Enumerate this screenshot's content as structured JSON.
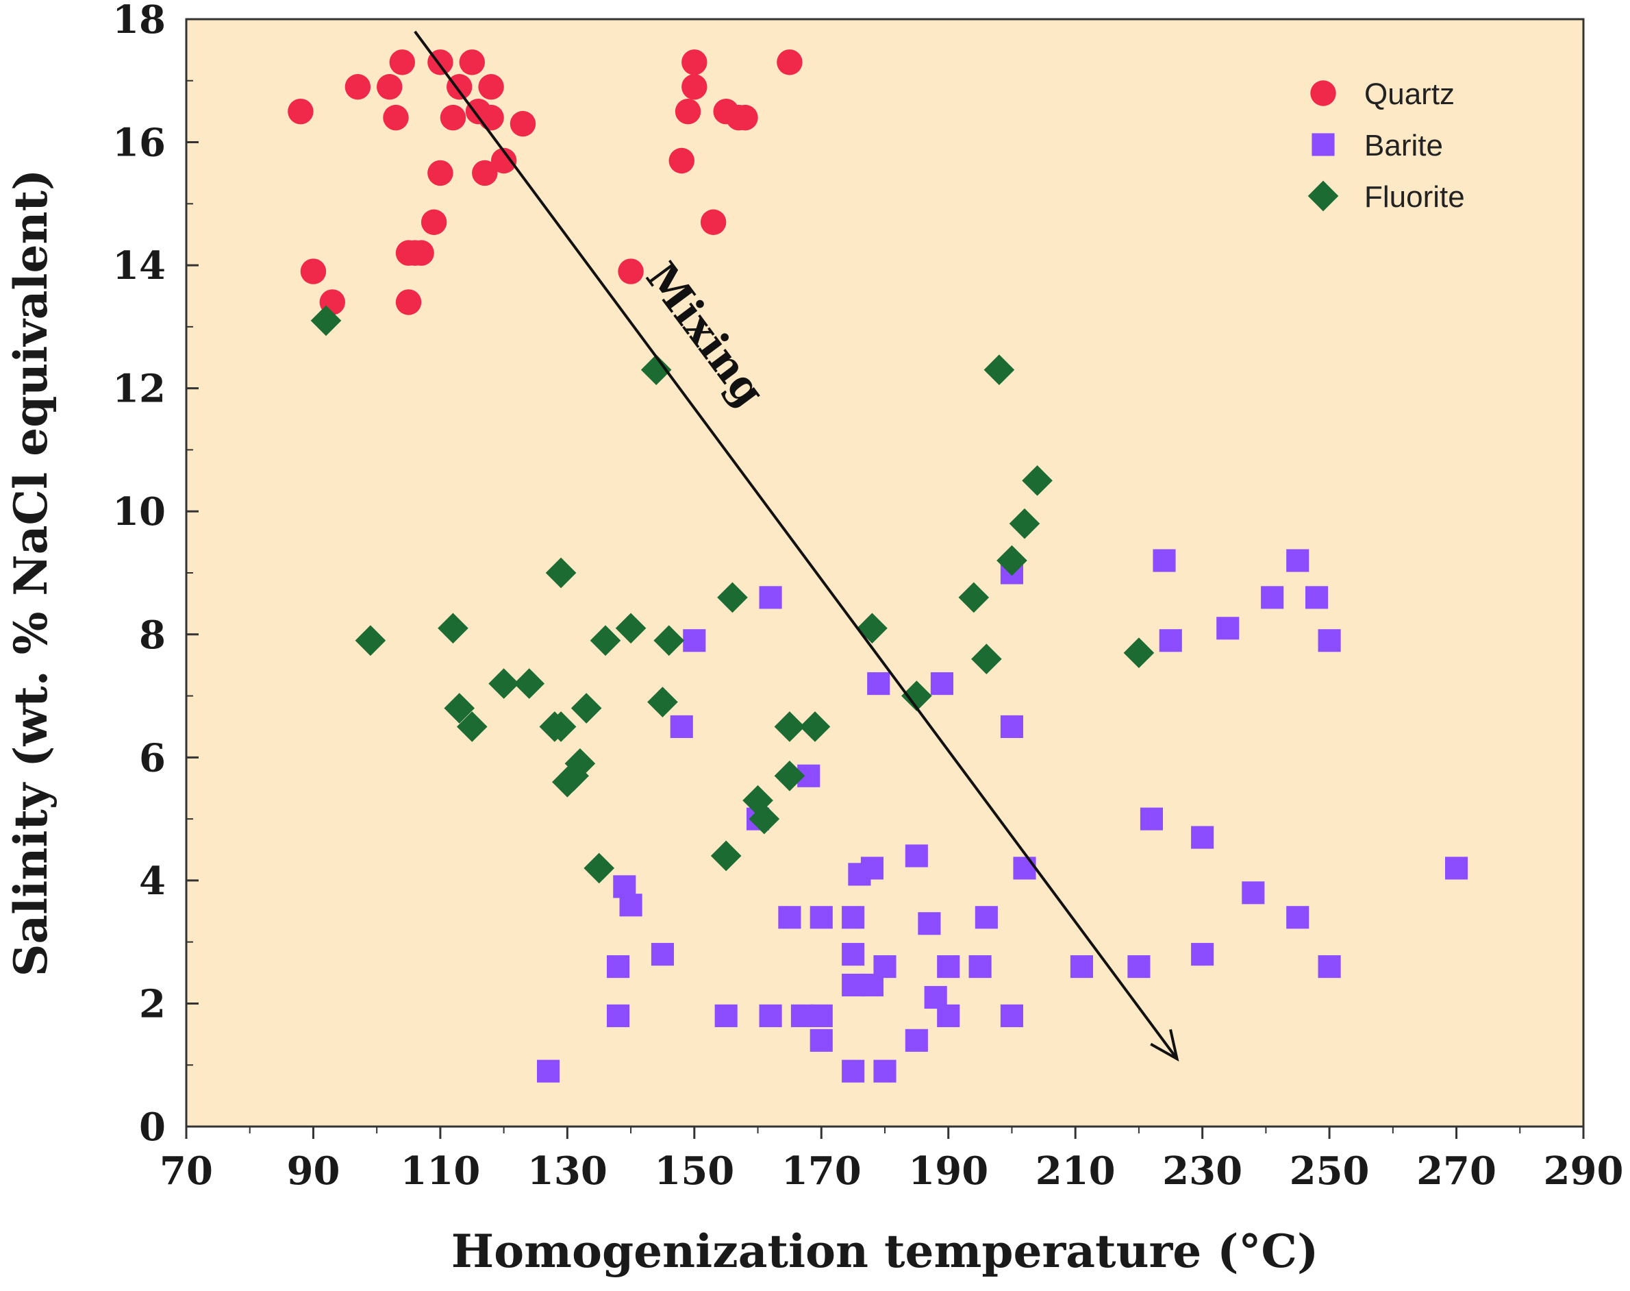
{
  "chart_data": {
    "type": "scatter",
    "title": "",
    "xlabel": "Homogenization temperature (°C)",
    "ylabel": "Salinity (wt. % NaCl equivalent)",
    "xlim": [
      70,
      290
    ],
    "ylim": [
      0,
      18
    ],
    "x_ticks": [
      70,
      90,
      110,
      130,
      150,
      170,
      190,
      210,
      230,
      250,
      270,
      290
    ],
    "y_ticks": [
      0,
      2,
      4,
      6,
      8,
      10,
      12,
      14,
      16,
      18
    ],
    "x_tick_labels": [
      "70",
      "90",
      "110",
      "130",
      "150",
      "170",
      "190",
      "210",
      "230",
      "250",
      "270",
      "290"
    ],
    "y_tick_labels": [
      "0",
      "2",
      "4",
      "6",
      "8",
      "10",
      "12",
      "14",
      "16",
      "18"
    ],
    "background_color": "#fde9c5",
    "grid": false,
    "legend_position": "top-right",
    "series": [
      {
        "name": "Quartz",
        "marker": "circle",
        "color": "#f0284a",
        "points": [
          [
            88,
            16.5
          ],
          [
            90,
            13.9
          ],
          [
            93,
            13.4
          ],
          [
            97,
            16.9
          ],
          [
            102,
            16.9
          ],
          [
            103,
            16.4
          ],
          [
            104,
            17.3
          ],
          [
            105,
            13.4
          ],
          [
            105,
            14.2
          ],
          [
            106,
            14.2
          ],
          [
            107,
            14.2
          ],
          [
            109,
            14.7
          ],
          [
            110,
            15.5
          ],
          [
            110,
            17.3
          ],
          [
            112,
            16.4
          ],
          [
            113,
            16.9
          ],
          [
            115,
            17.3
          ],
          [
            116,
            16.5
          ],
          [
            117,
            15.5
          ],
          [
            118,
            16.4
          ],
          [
            118,
            16.9
          ],
          [
            120,
            15.7
          ],
          [
            123,
            16.3
          ],
          [
            140,
            13.9
          ],
          [
            148,
            15.7
          ],
          [
            149,
            16.5
          ],
          [
            150,
            16.9
          ],
          [
            150,
            17.3
          ],
          [
            153,
            14.7
          ],
          [
            155,
            16.5
          ],
          [
            157,
            16.4
          ],
          [
            158,
            16.4
          ],
          [
            165,
            17.3
          ]
        ]
      },
      {
        "name": "Barite",
        "marker": "square",
        "color": "#8b4dff",
        "points": [
          [
            127,
            0.9
          ],
          [
            138,
            1.8
          ],
          [
            138,
            2.6
          ],
          [
            139,
            3.9
          ],
          [
            140,
            3.6
          ],
          [
            145,
            2.8
          ],
          [
            148,
            6.5
          ],
          [
            150,
            7.9
          ],
          [
            155,
            1.8
          ],
          [
            160,
            5.0
          ],
          [
            162,
            1.8
          ],
          [
            162,
            8.6
          ],
          [
            165,
            3.4
          ],
          [
            167,
            1.8
          ],
          [
            168,
            5.7
          ],
          [
            170,
            1.4
          ],
          [
            170,
            1.8
          ],
          [
            170,
            3.4
          ],
          [
            175,
            0.9
          ],
          [
            175,
            2.3
          ],
          [
            175,
            2.8
          ],
          [
            175,
            3.4
          ],
          [
            176,
            4.1
          ],
          [
            178,
            2.3
          ],
          [
            178,
            4.2
          ],
          [
            179,
            7.2
          ],
          [
            180,
            0.9
          ],
          [
            180,
            2.6
          ],
          [
            185,
            1.4
          ],
          [
            185,
            4.4
          ],
          [
            187,
            3.3
          ],
          [
            188,
            2.1
          ],
          [
            189,
            7.2
          ],
          [
            190,
            1.8
          ],
          [
            190,
            2.6
          ],
          [
            195,
            2.6
          ],
          [
            196,
            3.4
          ],
          [
            200,
            1.8
          ],
          [
            200,
            6.5
          ],
          [
            200,
            9.0
          ],
          [
            202,
            4.2
          ],
          [
            211,
            2.6
          ],
          [
            220,
            2.6
          ],
          [
            222,
            5.0
          ],
          [
            224,
            9.2
          ],
          [
            225,
            7.9
          ],
          [
            230,
            2.8
          ],
          [
            230,
            4.7
          ],
          [
            234,
            8.1
          ],
          [
            238,
            3.8
          ],
          [
            241,
            8.6
          ],
          [
            245,
            3.4
          ],
          [
            245,
            9.2
          ],
          [
            248,
            8.6
          ],
          [
            250,
            2.6
          ],
          [
            250,
            7.9
          ],
          [
            270,
            4.2
          ]
        ]
      },
      {
        "name": "Fluorite",
        "marker": "diamond",
        "color": "#1b6b33",
        "points": [
          [
            92,
            13.1
          ],
          [
            99,
            7.9
          ],
          [
            112,
            8.1
          ],
          [
            113,
            6.8
          ],
          [
            115,
            6.5
          ],
          [
            120,
            7.2
          ],
          [
            124,
            7.2
          ],
          [
            128,
            6.5
          ],
          [
            129,
            9.0
          ],
          [
            129,
            6.5
          ],
          [
            130,
            5.6
          ],
          [
            131,
            5.7
          ],
          [
            132,
            5.9
          ],
          [
            133,
            6.8
          ],
          [
            135,
            4.2
          ],
          [
            136,
            7.9
          ],
          [
            140,
            8.1
          ],
          [
            144,
            12.3
          ],
          [
            145,
            6.9
          ],
          [
            146,
            7.9
          ],
          [
            155,
            4.4
          ],
          [
            156,
            8.6
          ],
          [
            160,
            5.3
          ],
          [
            161,
            5.0
          ],
          [
            165,
            6.5
          ],
          [
            165,
            5.7
          ],
          [
            169,
            6.5
          ],
          [
            178,
            8.1
          ],
          [
            185,
            7.0
          ],
          [
            194,
            8.6
          ],
          [
            196,
            7.6
          ],
          [
            198,
            12.3
          ],
          [
            200,
            9.2
          ],
          [
            202,
            9.8
          ],
          [
            204,
            10.5
          ],
          [
            220,
            7.7
          ]
        ]
      }
    ],
    "annotations": [
      {
        "text": "Mixing",
        "arrow_from": [
          106,
          17.8
        ],
        "arrow_to": [
          226,
          1.1
        ]
      }
    ]
  }
}
